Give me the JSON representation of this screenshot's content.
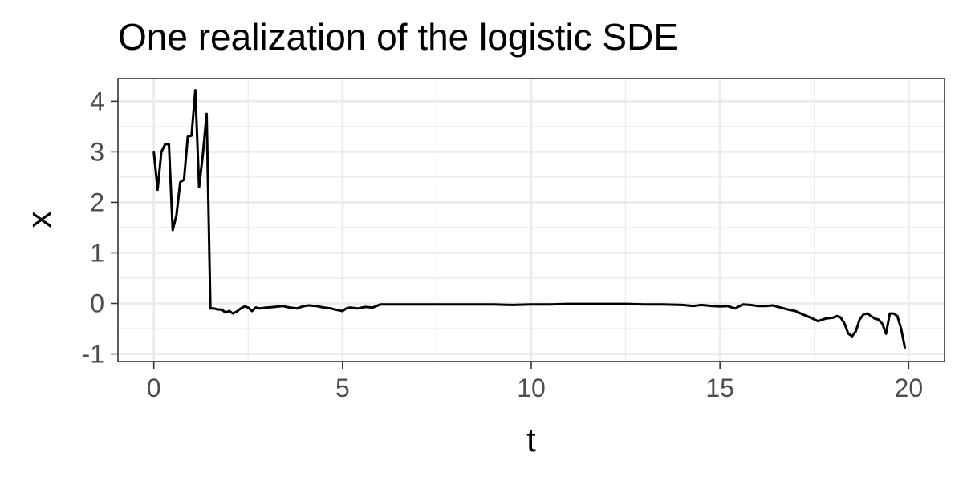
{
  "chart_data": {
    "type": "line",
    "title": "One realization of the logistic SDE",
    "xlabel": "t",
    "ylabel": "x",
    "xlim": [
      -0.95,
      20.95
    ],
    "ylim": [
      -1.15,
      4.45
    ],
    "xticks": [
      0,
      5,
      10,
      15,
      20
    ],
    "xtick_labels": [
      "0",
      "5",
      "10",
      "15",
      "20"
    ],
    "yticks": [
      -1,
      0,
      1,
      2,
      3,
      4
    ],
    "ytick_labels": [
      "-1",
      "0",
      "1",
      "2",
      "3",
      "4"
    ],
    "x_minor_ticks": [
      2.5,
      7.5,
      12.5,
      17.5
    ],
    "y_minor_ticks": [
      -0.5,
      0.5,
      1.5,
      2.5,
      3.5
    ],
    "grid": true,
    "legend": "none",
    "series": [
      {
        "color": "#000000",
        "x": [
          0,
          0.1,
          0.2,
          0.3,
          0.4,
          0.5,
          0.6,
          0.7,
          0.8,
          0.9,
          1.0,
          1.1,
          1.2,
          1.3,
          1.4,
          1.5,
          1.6,
          1.7,
          1.8,
          1.9,
          2.0,
          2.1,
          2.2,
          2.3,
          2.4,
          2.5,
          2.6,
          2.7,
          2.8,
          3.0,
          3.2,
          3.4,
          3.6,
          3.8,
          3.9,
          4.0,
          4.1,
          4.3,
          4.5,
          4.7,
          4.8,
          5.0,
          5.1,
          5.2,
          5.4,
          5.6,
          5.8,
          5.9,
          6.0,
          6.5,
          7.0,
          7.5,
          8.0,
          8.5,
          9.0,
          9.5,
          10.0,
          10.5,
          11.0,
          11.5,
          12.0,
          12.5,
          13.0,
          13.5,
          14.0,
          14.3,
          14.5,
          14.8,
          15.0,
          15.2,
          15.4,
          15.6,
          15.8,
          16.0,
          16.2,
          16.4,
          16.6,
          16.8,
          17.0,
          17.2,
          17.4,
          17.6,
          17.8,
          18.0,
          18.1,
          18.2,
          18.3,
          18.4,
          18.5,
          18.6,
          18.7,
          18.8,
          18.9,
          19.0,
          19.1,
          19.2,
          19.3,
          19.4,
          19.5,
          19.6,
          19.7,
          19.8,
          19.9
        ],
        "y": [
          3.0,
          2.25,
          3.0,
          3.15,
          3.15,
          1.45,
          1.75,
          2.4,
          2.45,
          3.3,
          3.32,
          4.22,
          2.3,
          2.95,
          3.75,
          -0.1,
          -0.1,
          -0.12,
          -0.12,
          -0.18,
          -0.15,
          -0.2,
          -0.16,
          -0.1,
          -0.06,
          -0.08,
          -0.15,
          -0.08,
          -0.1,
          -0.08,
          -0.07,
          -0.05,
          -0.08,
          -0.1,
          -0.07,
          -0.05,
          -0.04,
          -0.05,
          -0.08,
          -0.1,
          -0.12,
          -0.15,
          -0.1,
          -0.08,
          -0.1,
          -0.07,
          -0.08,
          -0.05,
          -0.02,
          -0.02,
          -0.02,
          -0.02,
          -0.02,
          -0.02,
          -0.02,
          -0.03,
          -0.02,
          -0.02,
          -0.01,
          -0.01,
          -0.01,
          -0.01,
          -0.02,
          -0.02,
          -0.03,
          -0.05,
          -0.03,
          -0.05,
          -0.06,
          -0.05,
          -0.1,
          -0.02,
          -0.03,
          -0.05,
          -0.05,
          -0.04,
          -0.08,
          -0.12,
          -0.15,
          -0.22,
          -0.28,
          -0.35,
          -0.3,
          -0.28,
          -0.25,
          -0.28,
          -0.4,
          -0.6,
          -0.65,
          -0.55,
          -0.32,
          -0.22,
          -0.2,
          -0.25,
          -0.3,
          -0.32,
          -0.4,
          -0.6,
          -0.2,
          -0.2,
          -0.25,
          -0.5,
          -0.87
        ]
      }
    ]
  }
}
